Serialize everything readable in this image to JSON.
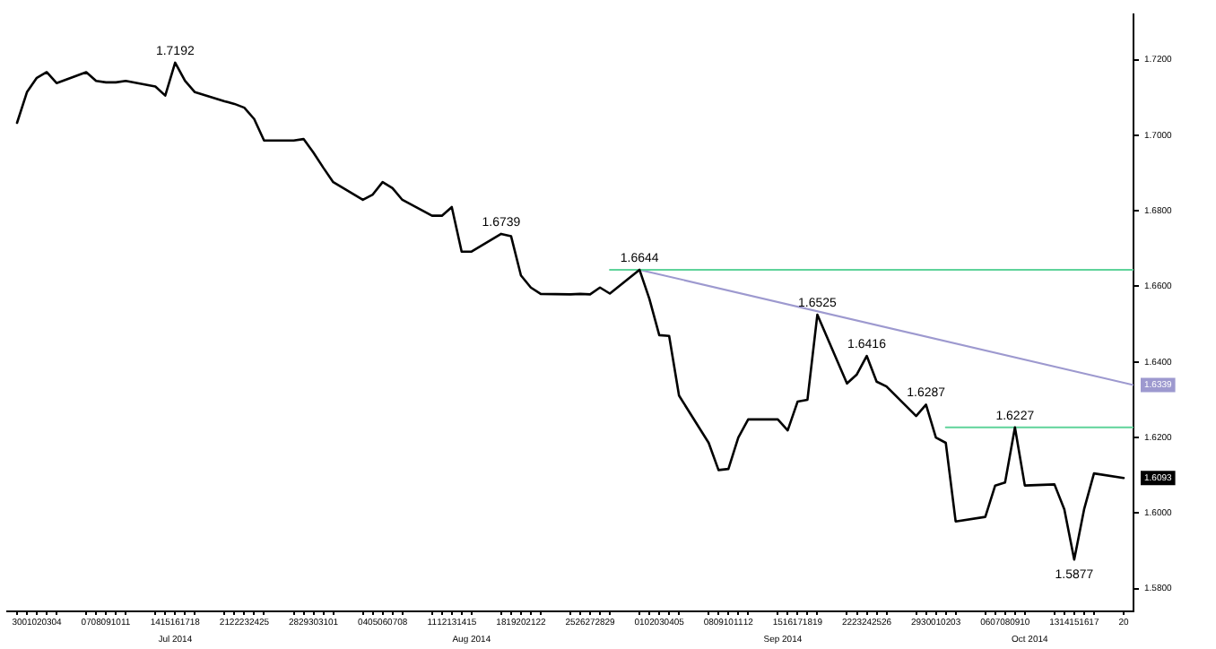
{
  "chart_data": {
    "type": "line",
    "x": [
      "2014-06-30",
      "2014-07-01",
      "2014-07-02",
      "2014-07-03",
      "2014-07-04",
      "2014-07-07",
      "2014-07-08",
      "2014-07-09",
      "2014-07-10",
      "2014-07-11",
      "2014-07-14",
      "2014-07-15",
      "2014-07-16",
      "2014-07-17",
      "2014-07-18",
      "2014-07-21",
      "2014-07-22",
      "2014-07-23",
      "2014-07-24",
      "2014-07-25",
      "2014-07-28",
      "2014-07-29",
      "2014-07-30",
      "2014-07-31",
      "2014-08-01",
      "2014-08-04",
      "2014-08-05",
      "2014-08-06",
      "2014-08-07",
      "2014-08-08",
      "2014-08-11",
      "2014-08-12",
      "2014-08-13",
      "2014-08-14",
      "2014-08-15",
      "2014-08-18",
      "2014-08-19",
      "2014-08-20",
      "2014-08-21",
      "2014-08-22",
      "2014-08-25",
      "2014-08-26",
      "2014-08-27",
      "2014-08-28",
      "2014-08-29",
      "2014-09-01",
      "2014-09-02",
      "2014-09-03",
      "2014-09-04",
      "2014-09-05",
      "2014-09-08",
      "2014-09-09",
      "2014-09-10",
      "2014-09-11",
      "2014-09-12",
      "2014-09-15",
      "2014-09-16",
      "2014-09-17",
      "2014-09-18",
      "2014-09-19",
      "2014-09-22",
      "2014-09-23",
      "2014-09-24",
      "2014-09-25",
      "2014-09-26",
      "2014-09-29",
      "2014-09-30",
      "2014-10-01",
      "2014-10-02",
      "2014-10-03",
      "2014-10-06",
      "2014-10-07",
      "2014-10-08",
      "2014-10-09",
      "2014-10-10",
      "2014-10-13",
      "2014-10-14",
      "2014-10-15",
      "2014-10-16",
      "2014-10-17",
      "2014-10-20"
    ],
    "series": [
      {
        "color": "#000000",
        "values": [
          1.7033,
          1.7114,
          1.7152,
          1.7167,
          1.7138,
          1.7167,
          1.7144,
          1.714,
          1.714,
          1.7144,
          1.7129,
          1.7105,
          1.7192,
          1.7144,
          1.7114,
          1.709,
          1.7083,
          1.7073,
          1.7043,
          1.6986,
          1.6986,
          1.699,
          1.6954,
          1.6914,
          1.6876,
          1.6829,
          1.6843,
          1.6876,
          1.686,
          1.6829,
          1.6787,
          1.6787,
          1.681,
          1.6692,
          1.6692,
          1.6739,
          1.6733,
          1.6629,
          1.6597,
          1.658,
          1.6579,
          1.658,
          1.6579,
          1.6597,
          1.6581,
          1.6644,
          1.6567,
          1.6471,
          1.6469,
          1.6311,
          1.6186,
          1.6114,
          1.6117,
          1.62,
          1.6248,
          1.6248,
          1.6219,
          1.6295,
          1.63,
          1.6525,
          1.6343,
          1.6367,
          1.6416,
          1.6348,
          1.6335,
          1.6257,
          1.6287,
          1.62,
          1.6186,
          1.5978,
          1.599,
          1.6073,
          1.6081,
          1.6227,
          1.6073,
          1.6076,
          1.601,
          1.5877,
          1.601,
          1.6105,
          1.6093
        ]
      },
      {
        "type": "line",
        "x": [
          "2014-08-29",
          "2014-10-21"
        ],
        "values": [
          1.6644,
          1.6644
        ],
        "color": "#5fd39a"
      },
      {
        "type": "line",
        "x": [
          "2014-10-02",
          "2014-10-21"
        ],
        "values": [
          1.6227,
          1.6227
        ],
        "color": "#5fd39a"
      },
      {
        "type": "line",
        "x": [
          "2014-09-01",
          "2014-10-21"
        ],
        "values": [
          1.6644,
          1.6339
        ],
        "color": "#9d99cf"
      }
    ],
    "xlim": [
      "2014-06-29",
      "2014-10-21"
    ],
    "xticks": [
      {
        "value": "2014-06-30",
        "label": "30"
      },
      {
        "value": "2014-07-01",
        "label": "01"
      },
      {
        "value": "2014-07-02",
        "label": "02"
      },
      {
        "value": "2014-07-03",
        "label": "03"
      },
      {
        "value": "2014-07-04",
        "label": "04"
      },
      {
        "value": "2014-07-07",
        "label": "07"
      },
      {
        "value": "2014-07-08",
        "label": "08"
      },
      {
        "value": "2014-07-09",
        "label": "09"
      },
      {
        "value": "2014-07-10",
        "label": "10"
      },
      {
        "value": "2014-07-11",
        "label": "11"
      },
      {
        "value": "2014-07-14",
        "label": "14"
      },
      {
        "value": "2014-07-15",
        "label": "15"
      },
      {
        "value": "2014-07-16",
        "label": "16"
      },
      {
        "value": "2014-07-17",
        "label": "17"
      },
      {
        "value": "2014-07-18",
        "label": "18"
      },
      {
        "value": "2014-07-21",
        "label": "21"
      },
      {
        "value": "2014-07-22",
        "label": "22"
      },
      {
        "value": "2014-07-23",
        "label": "23"
      },
      {
        "value": "2014-07-24",
        "label": "24"
      },
      {
        "value": "2014-07-25",
        "label": "25"
      },
      {
        "value": "2014-07-28",
        "label": "28"
      },
      {
        "value": "2014-07-29",
        "label": "29"
      },
      {
        "value": "2014-07-30",
        "label": "30"
      },
      {
        "value": "2014-07-31",
        "label": "31"
      },
      {
        "value": "2014-08-01",
        "label": "01"
      },
      {
        "value": "2014-08-04",
        "label": "04"
      },
      {
        "value": "2014-08-05",
        "label": "05"
      },
      {
        "value": "2014-08-06",
        "label": "06"
      },
      {
        "value": "2014-08-07",
        "label": "07"
      },
      {
        "value": "2014-08-08",
        "label": "08"
      },
      {
        "value": "2014-08-11",
        "label": "11"
      },
      {
        "value": "2014-08-12",
        "label": "12"
      },
      {
        "value": "2014-08-13",
        "label": "13"
      },
      {
        "value": "2014-08-14",
        "label": "14"
      },
      {
        "value": "2014-08-15",
        "label": "15"
      },
      {
        "value": "2014-08-18",
        "label": "18"
      },
      {
        "value": "2014-08-19",
        "label": "19"
      },
      {
        "value": "2014-08-20",
        "label": "20"
      },
      {
        "value": "2014-08-21",
        "label": "21"
      },
      {
        "value": "2014-08-22",
        "label": "22"
      },
      {
        "value": "2014-08-25",
        "label": "25"
      },
      {
        "value": "2014-08-26",
        "label": "26"
      },
      {
        "value": "2014-08-27",
        "label": "27"
      },
      {
        "value": "2014-08-28",
        "label": "28"
      },
      {
        "value": "2014-08-29",
        "label": "29"
      },
      {
        "value": "2014-09-01",
        "label": "01"
      },
      {
        "value": "2014-09-02",
        "label": "02"
      },
      {
        "value": "2014-09-03",
        "label": "03"
      },
      {
        "value": "2014-09-04",
        "label": "04"
      },
      {
        "value": "2014-09-05",
        "label": "05"
      },
      {
        "value": "2014-09-08",
        "label": "08"
      },
      {
        "value": "2014-09-09",
        "label": "09"
      },
      {
        "value": "2014-09-10",
        "label": "10"
      },
      {
        "value": "2014-09-11",
        "label": "11"
      },
      {
        "value": "2014-09-12",
        "label": "12"
      },
      {
        "value": "2014-09-15",
        "label": "15"
      },
      {
        "value": "2014-09-16",
        "label": "16"
      },
      {
        "value": "2014-09-17",
        "label": "17"
      },
      {
        "value": "2014-09-18",
        "label": "18"
      },
      {
        "value": "2014-09-19",
        "label": "19"
      },
      {
        "value": "2014-09-22",
        "label": "22"
      },
      {
        "value": "2014-09-23",
        "label": "23"
      },
      {
        "value": "2014-09-24",
        "label": "24"
      },
      {
        "value": "2014-09-25",
        "label": "25"
      },
      {
        "value": "2014-09-26",
        "label": "26"
      },
      {
        "value": "2014-09-29",
        "label": "29"
      },
      {
        "value": "2014-09-30",
        "label": "30"
      },
      {
        "value": "2014-10-01",
        "label": "01"
      },
      {
        "value": "2014-10-02",
        "label": "02"
      },
      {
        "value": "2014-10-03",
        "label": "03"
      },
      {
        "value": "2014-10-06",
        "label": "06"
      },
      {
        "value": "2014-10-07",
        "label": "07"
      },
      {
        "value": "2014-10-08",
        "label": "08"
      },
      {
        "value": "2014-10-09",
        "label": "09"
      },
      {
        "value": "2014-10-10",
        "label": "10"
      },
      {
        "value": "2014-10-13",
        "label": "13"
      },
      {
        "value": "2014-10-14",
        "label": "14"
      },
      {
        "value": "2014-10-15",
        "label": "15"
      },
      {
        "value": "2014-10-16",
        "label": "16"
      },
      {
        "value": "2014-10-17",
        "label": "17"
      },
      {
        "value": "2014-10-20",
        "label": "20"
      }
    ],
    "ylim": [
      1.574,
      1.732
    ],
    "yticks": [
      {
        "value": 1.58,
        "label": "1.5800"
      },
      {
        "value": 1.6,
        "label": "1.6000"
      },
      {
        "value": 1.62,
        "label": "1.6200"
      },
      {
        "value": 1.64,
        "label": "1.6400"
      },
      {
        "value": 1.66,
        "label": "1.6600"
      },
      {
        "value": 1.68,
        "label": "1.6800"
      },
      {
        "value": 1.7,
        "label": "1.7000"
      },
      {
        "value": 1.72,
        "label": "1.7200"
      }
    ],
    "annotations": [
      {
        "text": "1.7192",
        "x": "2014-07-16",
        "y": 1.7192
      },
      {
        "text": "1.6739",
        "x": "2014-08-18",
        "y": 1.6739
      },
      {
        "text": "1.6644",
        "x": "2014-09-01",
        "y": 1.6644
      },
      {
        "text": "1.6525",
        "x": "2014-09-19",
        "y": 1.6525
      },
      {
        "text": "1.6416",
        "x": "2014-09-24",
        "y": 1.6416
      },
      {
        "text": "1.6287",
        "x": "2014-09-30",
        "y": 1.6287
      },
      {
        "text": "1.6227",
        "x": "2014-10-09",
        "y": 1.6227
      },
      {
        "text": "1.5877",
        "x": "2014-10-15",
        "y": 1.5877
      },
      {
        "text": "1.6339",
        "x": "2014-10-21",
        "y": 1.6339
      },
      {
        "text": "1.6093",
        "x": "2014-10-20",
        "y": 1.6093
      },
      "Jul 2014",
      "Aug 2014",
      "Sep 2014",
      "Oct 2014"
    ],
    "grid": false,
    "legend": false,
    "marker": "none",
    "line_style": "solid"
  }
}
